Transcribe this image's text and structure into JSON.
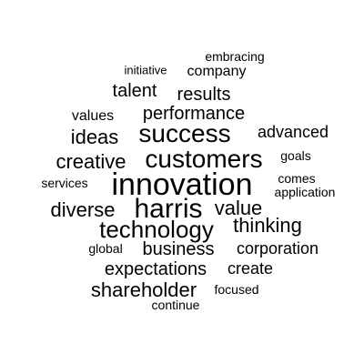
{
  "word_cloud": {
    "words": {
      "embracing": "embracing",
      "initiative": "initiative",
      "company": "company",
      "talent": "talent",
      "results": "results",
      "values": "values",
      "performance": "performance",
      "ideas": "ideas",
      "success": "success",
      "advanced": "advanced",
      "creative": "creative",
      "customers": "customers",
      "goals": "goals",
      "comes": "comes",
      "services": "services",
      "innovation": "innovation",
      "application": "application",
      "diverse": "diverse",
      "harris": "harris",
      "value": "value",
      "technology": "technology",
      "thinking": "thinking",
      "global": "global",
      "business": "business",
      "corporation": "corporation",
      "expectations": "expectations",
      "create": "create",
      "shareholder": "shareholder",
      "focused": "focused",
      "continue": "continue"
    },
    "colors": {
      "text": "#000000",
      "background": "#ffffff"
    }
  }
}
